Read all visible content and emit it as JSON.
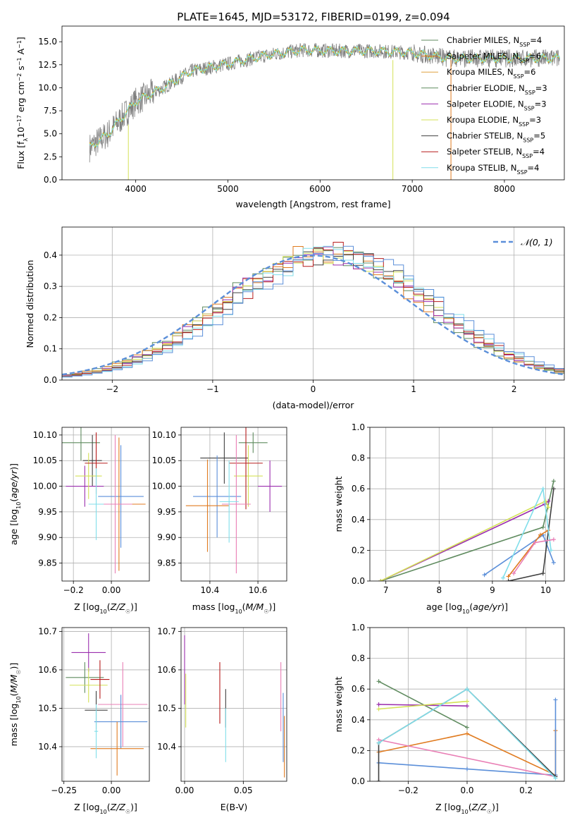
{
  "figure": {
    "title": "PLATE=1645, MJD=53172, FIBERID=0199, z=0.094"
  },
  "colors": {
    "data_gray": "#808080",
    "chabrier_miles": "#5f8b5f",
    "salpeter_miles": "#e07b20",
    "kroupa_miles": "#e07b20",
    "chabrier_elodie": "#5f8b5f",
    "salpeter_elodie": "#9b2fae",
    "kroupa_elodie": "#d4e157",
    "chabrier_stelib": "#404040",
    "salpeter_stelib": "#b71c1c",
    "kroupa_stelib": "#80deea",
    "blue": "#5b8fd9",
    "pink": "#e97fb5",
    "grid": "#b0b0b0"
  },
  "legend": {
    "spectrum_entries": [
      {
        "name": "Chabrier MILES, N",
        "sub": "SSP",
        "tail": "=4",
        "color": "#5f8b5f"
      },
      {
        "name": "Salpeter MILES, N",
        "sub": "SSP",
        "tail": "=6",
        "color": "#e07b20"
      },
      {
        "name": "Kroupa MILES, N",
        "sub": "SSP",
        "tail": "=6",
        "color": "#e0a040"
      },
      {
        "name": "Chabrier ELODIE, N",
        "sub": "SSP",
        "tail": "=3",
        "color": "#5f8b5f"
      },
      {
        "name": "Salpeter ELODIE, N",
        "sub": "SSP",
        "tail": "=3",
        "color": "#9b2fae"
      },
      {
        "name": "Kroupa ELODIE, N",
        "sub": "SSP",
        "tail": "=3",
        "color": "#d4e157"
      },
      {
        "name": "Chabrier STELIB, N",
        "sub": "SSP",
        "tail": "=5",
        "color": "#404040"
      },
      {
        "name": "Salpeter STELIB, N",
        "sub": "SSP",
        "tail": "=4",
        "color": "#b71c1c"
      },
      {
        "name": "Kroupa STELIB, N",
        "sub": "SSP",
        "tail": "=4",
        "color": "#80deea"
      }
    ],
    "normal_label": "𝒩(0, 1)"
  },
  "chart_data": [
    {
      "type": "line",
      "xlabel": "wavelength [Angstrom, rest frame]",
      "ylabel": "Flux [fλ10⁻¹⁷ erg cm⁻² s⁻¹ A⁻¹]",
      "xlim": [
        3200,
        8650
      ],
      "ylim": [
        0,
        16.7
      ],
      "xticks": [
        4000,
        5000,
        6000,
        7000,
        8000
      ],
      "yticks": [
        0.0,
        2.5,
        5.0,
        7.5,
        10.0,
        12.5,
        15.0
      ],
      "continuum": {
        "x": [
          3500,
          3700,
          4000,
          4300,
          4600,
          5000,
          5400,
          5800,
          6200,
          6600,
          7000,
          7400
        ],
        "y": [
          3.5,
          5.0,
          8.5,
          10.0,
          11.8,
          12.6,
          13.5,
          14.1,
          14.0,
          14.0,
          13.8,
          13.2
        ]
      }
    },
    {
      "type": "line",
      "xlabel": "(data-model)/error",
      "ylabel": "Normed distribution",
      "xlim": [
        -2.5,
        2.5
      ],
      "ylim": [
        0,
        0.49
      ],
      "xticks": [
        -2,
        -1,
        0,
        1,
        2
      ],
      "yticks": [
        0.0,
        0.1,
        0.2,
        0.3,
        0.4
      ],
      "normal": {
        "mu": 0,
        "sigma": 1
      }
    },
    {
      "type": "scatter",
      "xlabel": "Z [log10(Z/Z☉)]",
      "ylabel": "age  [log10(age/yr)]",
      "xlim": [
        -0.26,
        0.2
      ],
      "ylim": [
        9.815,
        10.115
      ],
      "xticks": [
        -0.2,
        0.0
      ],
      "yticks": [
        9.85,
        9.9,
        9.95,
        10.0,
        10.05,
        10.1
      ],
      "points": [
        {
          "x": -0.16,
          "y": 10.085,
          "xerr": 0.1,
          "yerr": 0.035,
          "color": "#5f8b5f"
        },
        {
          "x": -0.1,
          "y": 10.05,
          "xerr": 0.05,
          "yerr": 0.05,
          "color": "#404040"
        },
        {
          "x": -0.14,
          "y": 10.0,
          "xerr": 0.1,
          "yerr": 0.04,
          "color": "#9b2fae"
        },
        {
          "x": -0.12,
          "y": 10.02,
          "xerr": 0.07,
          "yerr": 0.045,
          "color": "#d4e157"
        },
        {
          "x": -0.08,
          "y": 10.045,
          "xerr": 0.06,
          "yerr": 0.06,
          "color": "#b71c1c"
        },
        {
          "x": 0.05,
          "y": 9.98,
          "xerr": 0.12,
          "yerr": 0.1,
          "color": "#5b8fd9"
        },
        {
          "x": 0.04,
          "y": 9.965,
          "xerr": 0.14,
          "yerr": 0.13,
          "color": "#e07b20"
        },
        {
          "x": 0.02,
          "y": 9.965,
          "xerr": 0.09,
          "yerr": 0.135,
          "color": "#e97fb5"
        },
        {
          "x": -0.08,
          "y": 9.965,
          "xerr": 0.04,
          "yerr": 0.07,
          "color": "#80deea"
        }
      ]
    },
    {
      "type": "scatter",
      "xlabel": "mass [log10(M/M☉)]",
      "ylabel": "",
      "xlim": [
        10.28,
        10.72
      ],
      "ylim": [
        9.815,
        10.115
      ],
      "xticks": [
        10.4,
        10.6
      ],
      "yticks": [
        9.85,
        9.9,
        9.95,
        10.0,
        10.05,
        10.1
      ],
      "points": [
        {
          "x": 10.58,
          "y": 10.085,
          "xerr": 0.06,
          "yerr": 0.02,
          "color": "#5f8b5f"
        },
        {
          "x": 10.46,
          "y": 10.055,
          "xerr": 0.1,
          "yerr": 0.05,
          "color": "#404040"
        },
        {
          "x": 10.65,
          "y": 10.0,
          "xerr": 0.05,
          "yerr": 0.05,
          "color": "#9b2fae"
        },
        {
          "x": 10.56,
          "y": 10.02,
          "xerr": 0.06,
          "yerr": 0.06,
          "color": "#d4e157"
        },
        {
          "x": 10.55,
          "y": 10.045,
          "xerr": 0.07,
          "yerr": 0.09,
          "color": "#b71c1c"
        },
        {
          "x": 10.43,
          "y": 9.98,
          "xerr": 0.1,
          "yerr": 0.08,
          "color": "#5b8fd9"
        },
        {
          "x": 10.39,
          "y": 9.962,
          "xerr": 0.09,
          "yerr": 0.09,
          "color": "#e07b20"
        },
        {
          "x": 10.51,
          "y": 9.965,
          "xerr": 0.06,
          "yerr": 0.135,
          "color": "#e97fb5"
        },
        {
          "x": 10.48,
          "y": 9.97,
          "xerr": 0.04,
          "yerr": 0.08,
          "color": "#80deea"
        }
      ]
    },
    {
      "type": "line",
      "xlabel": "age  [log10(age/yr)]",
      "ylabel": "mass weight",
      "xlim": [
        6.7,
        10.35
      ],
      "ylim": [
        0,
        1.0
      ],
      "xticks": [
        7,
        8,
        9,
        10
      ],
      "yticks": [
        0.0,
        0.2,
        0.4,
        0.6,
        0.8,
        1.0
      ],
      "series": [
        {
          "color": "#5f8b5f",
          "x": [
            6.9,
            9.95,
            10.15
          ],
          "y": [
            0.0,
            0.35,
            0.65
          ]
        },
        {
          "color": "#9b2fae",
          "x": [
            6.9,
            9.98,
            10.05
          ],
          "y": [
            0.0,
            0.5,
            0.52
          ]
        },
        {
          "color": "#d4e157",
          "x": [
            6.9,
            10.0,
            10.05
          ],
          "y": [
            0.0,
            0.52,
            0.48
          ]
        },
        {
          "color": "#5b8fd9",
          "x": [
            8.85,
            9.95,
            10.15
          ],
          "y": [
            0.04,
            0.3,
            0.12
          ]
        },
        {
          "color": "#e07b20",
          "x": [
            9.3,
            9.9,
            10.05
          ],
          "y": [
            0.03,
            0.3,
            0.33
          ]
        },
        {
          "color": "#404040",
          "x": [
            9.3,
            9.95,
            10.15
          ],
          "y": [
            0.0,
            0.05,
            0.6
          ]
        },
        {
          "color": "#80deea",
          "x": [
            9.2,
            9.95,
            10.1
          ],
          "y": [
            0.02,
            0.6,
            0.2
          ]
        },
        {
          "color": "#e97fb5",
          "x": [
            9.4,
            9.8,
            10.15
          ],
          "y": [
            0.05,
            0.25,
            0.27
          ]
        }
      ]
    },
    {
      "type": "scatter",
      "xlabel": "Z [log10(Z/Z☉)]",
      "ylabel": "mass [log10(M/M☉)]",
      "xlim": [
        -0.26,
        0.2
      ],
      "ylim": [
        10.31,
        10.71
      ],
      "xticks": [
        -0.25,
        0.0
      ],
      "yticks": [
        10.4,
        10.5,
        10.6,
        10.7
      ],
      "points": [
        {
          "x": -0.12,
          "y": 10.645,
          "xerr": 0.09,
          "yerr": 0.05,
          "color": "#9b2fae"
        },
        {
          "x": -0.14,
          "y": 10.58,
          "xerr": 0.1,
          "yerr": 0.04,
          "color": "#5f8b5f"
        },
        {
          "x": -0.12,
          "y": 10.56,
          "xerr": 0.1,
          "yerr": 0.045,
          "color": "#d4e157"
        },
        {
          "x": -0.06,
          "y": 10.575,
          "xerr": 0.05,
          "yerr": 0.05,
          "color": "#b71c1c"
        },
        {
          "x": -0.08,
          "y": 10.495,
          "xerr": 0.06,
          "yerr": 0.05,
          "color": "#404040"
        },
        {
          "x": 0.06,
          "y": 10.51,
          "xerr": 0.13,
          "yerr": 0.11,
          "color": "#e97fb5"
        },
        {
          "x": 0.05,
          "y": 10.465,
          "xerr": 0.14,
          "yerr": 0.07,
          "color": "#5b8fd9"
        },
        {
          "x": 0.03,
          "y": 10.395,
          "xerr": 0.14,
          "yerr": 0.07,
          "color": "#e07b20"
        },
        {
          "x": -0.08,
          "y": 10.44,
          "xerr": 0.01,
          "yerr": 0.07,
          "color": "#80deea"
        }
      ]
    },
    {
      "type": "scatter",
      "xlabel": "E(B-V)",
      "ylabel": "",
      "xlim": [
        -0.003,
        0.087
      ],
      "ylim": [
        10.31,
        10.71
      ],
      "xticks": [
        0.0,
        0.05
      ],
      "yticks": [
        10.4,
        10.5,
        10.6,
        10.7
      ],
      "points": [
        {
          "x": 0.0,
          "y": 10.6,
          "xerr": 0,
          "yerr": 0.09,
          "color": "#9b2fae"
        },
        {
          "x": 0.001,
          "y": 10.52,
          "xerr": 0,
          "yerr": 0.07,
          "color": "#d4e157"
        },
        {
          "x": 0.03,
          "y": 10.54,
          "xerr": 0,
          "yerr": 0.08,
          "color": "#b71c1c"
        },
        {
          "x": 0.035,
          "y": 10.5,
          "xerr": 0,
          "yerr": 0.05,
          "color": "#404040"
        },
        {
          "x": 0.035,
          "y": 10.43,
          "xerr": 0,
          "yerr": 0.07,
          "color": "#80deea"
        },
        {
          "x": 0.082,
          "y": 10.53,
          "xerr": 0,
          "yerr": 0.09,
          "color": "#e97fb5"
        },
        {
          "x": 0.084,
          "y": 10.45,
          "xerr": 0,
          "yerr": 0.09,
          "color": "#5b8fd9"
        },
        {
          "x": 0.085,
          "y": 10.4,
          "xerr": 0,
          "yerr": 0.08,
          "color": "#e07b20"
        }
      ]
    },
    {
      "type": "line",
      "xlabel": "Z [log10(Z/Z☉)]",
      "ylabel": "mass weight",
      "xlim": [
        -0.33,
        0.33
      ],
      "ylim": [
        0,
        1.0
      ],
      "xticks": [
        -0.2,
        0.0,
        0.2
      ],
      "yticks": [
        0.0,
        0.2,
        0.4,
        0.6,
        0.8,
        1.0
      ],
      "series": [
        {
          "color": "#5f8b5f",
          "x": [
            -0.3,
            0.0
          ],
          "y": [
            0.65,
            0.35
          ]
        },
        {
          "color": "#9b2fae",
          "x": [
            -0.3,
            0.0
          ],
          "y": [
            0.5,
            0.49
          ]
        },
        {
          "color": "#d4e157",
          "x": [
            -0.3,
            0.0
          ],
          "y": [
            0.47,
            0.52
          ]
        },
        {
          "color": "#e07b20",
          "x": [
            -0.3,
            0.0,
            0.3,
            0.3
          ],
          "y": [
            0.19,
            0.31,
            0.04,
            0.33
          ]
        },
        {
          "color": "#5b8fd9",
          "x": [
            -0.3,
            0.0,
            0.3,
            0.3
          ],
          "y": [
            0.12,
            0.08,
            0.04,
            0.53
          ]
        },
        {
          "color": "#e97fb5",
          "x": [
            -0.3,
            0.3
          ],
          "y": [
            0.27,
            0.03
          ]
        },
        {
          "color": "#404040",
          "x": [
            -0.3,
            -0.3,
            0.0,
            0.3
          ],
          "y": [
            0.0,
            0.25,
            0.6,
            0.03
          ]
        },
        {
          "color": "#80deea",
          "x": [
            -0.3,
            0.0,
            0.3
          ],
          "y": [
            0.25,
            0.6,
            0.02
          ]
        }
      ]
    }
  ]
}
